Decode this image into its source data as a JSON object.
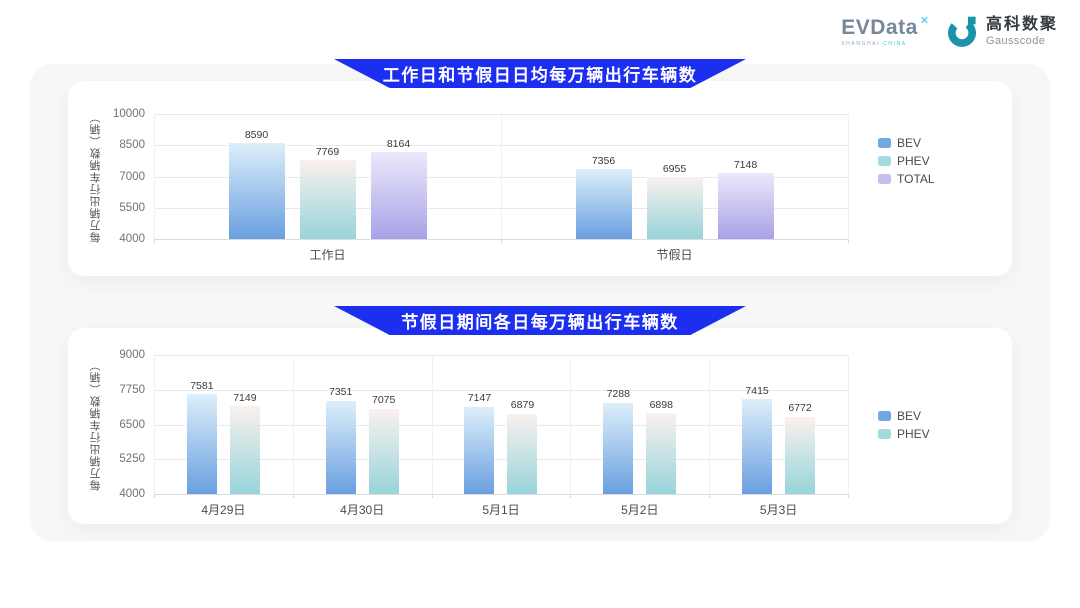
{
  "logo": {
    "evdata": {
      "text": "EVData",
      "sup": "✕",
      "sub1": "SHANGHAI",
      "sub2": "CHINA"
    },
    "gausscode": {
      "cn": "高科数聚",
      "en": "Gausscode"
    }
  },
  "colors": {
    "banner": "#1c2ef0",
    "panel_bg": "#f7f7f8",
    "gausscode_teal": "#1b93a8",
    "series": {
      "BEV": {
        "top": "#ddeffa",
        "bottom": "#699fe0",
        "swatch": "#71a8e2"
      },
      "PHEV": {
        "top": "#faf1ee",
        "bottom": "#97d4da",
        "swatch": "#a5dbdf"
      },
      "TOTAL": {
        "top": "#ebe9fb",
        "bottom": "#a8a2e6",
        "swatch": "#c4bfee"
      }
    }
  },
  "chart_data": [
    {
      "type": "bar",
      "title": "工作日和节假日日均每万辆出行车辆数",
      "ylabel": "每万辆出行车辆数（辆）",
      "xlabel": "",
      "ylim": [
        4000,
        10000
      ],
      "yticks": [
        4000,
        5500,
        7000,
        8500,
        10000
      ],
      "categories": [
        "工作日",
        "节假日"
      ],
      "series": [
        {
          "name": "BEV",
          "values": [
            8590,
            7356
          ]
        },
        {
          "name": "PHEV",
          "values": [
            7769,
            6955
          ]
        },
        {
          "name": "TOTAL",
          "values": [
            8164,
            7148
          ]
        }
      ],
      "legend": [
        "BEV",
        "PHEV",
        "TOTAL"
      ],
      "legend_position": "right",
      "grid": true
    },
    {
      "type": "bar",
      "title": "节假日期间各日每万辆出行车辆数",
      "ylabel": "每万辆出行车辆数（辆）",
      "xlabel": "",
      "ylim": [
        4000,
        9000
      ],
      "yticks": [
        4000,
        5250,
        6500,
        7750,
        9000
      ],
      "categories": [
        "4月29日",
        "4月30日",
        "5月1日",
        "5月2日",
        "5月3日"
      ],
      "series": [
        {
          "name": "BEV",
          "values": [
            7581,
            7351,
            7147,
            7288,
            7415
          ]
        },
        {
          "name": "PHEV",
          "values": [
            7149,
            7075,
            6879,
            6898,
            6772
          ]
        }
      ],
      "legend": [
        "BEV",
        "PHEV"
      ],
      "legend_position": "right",
      "grid": true
    }
  ]
}
